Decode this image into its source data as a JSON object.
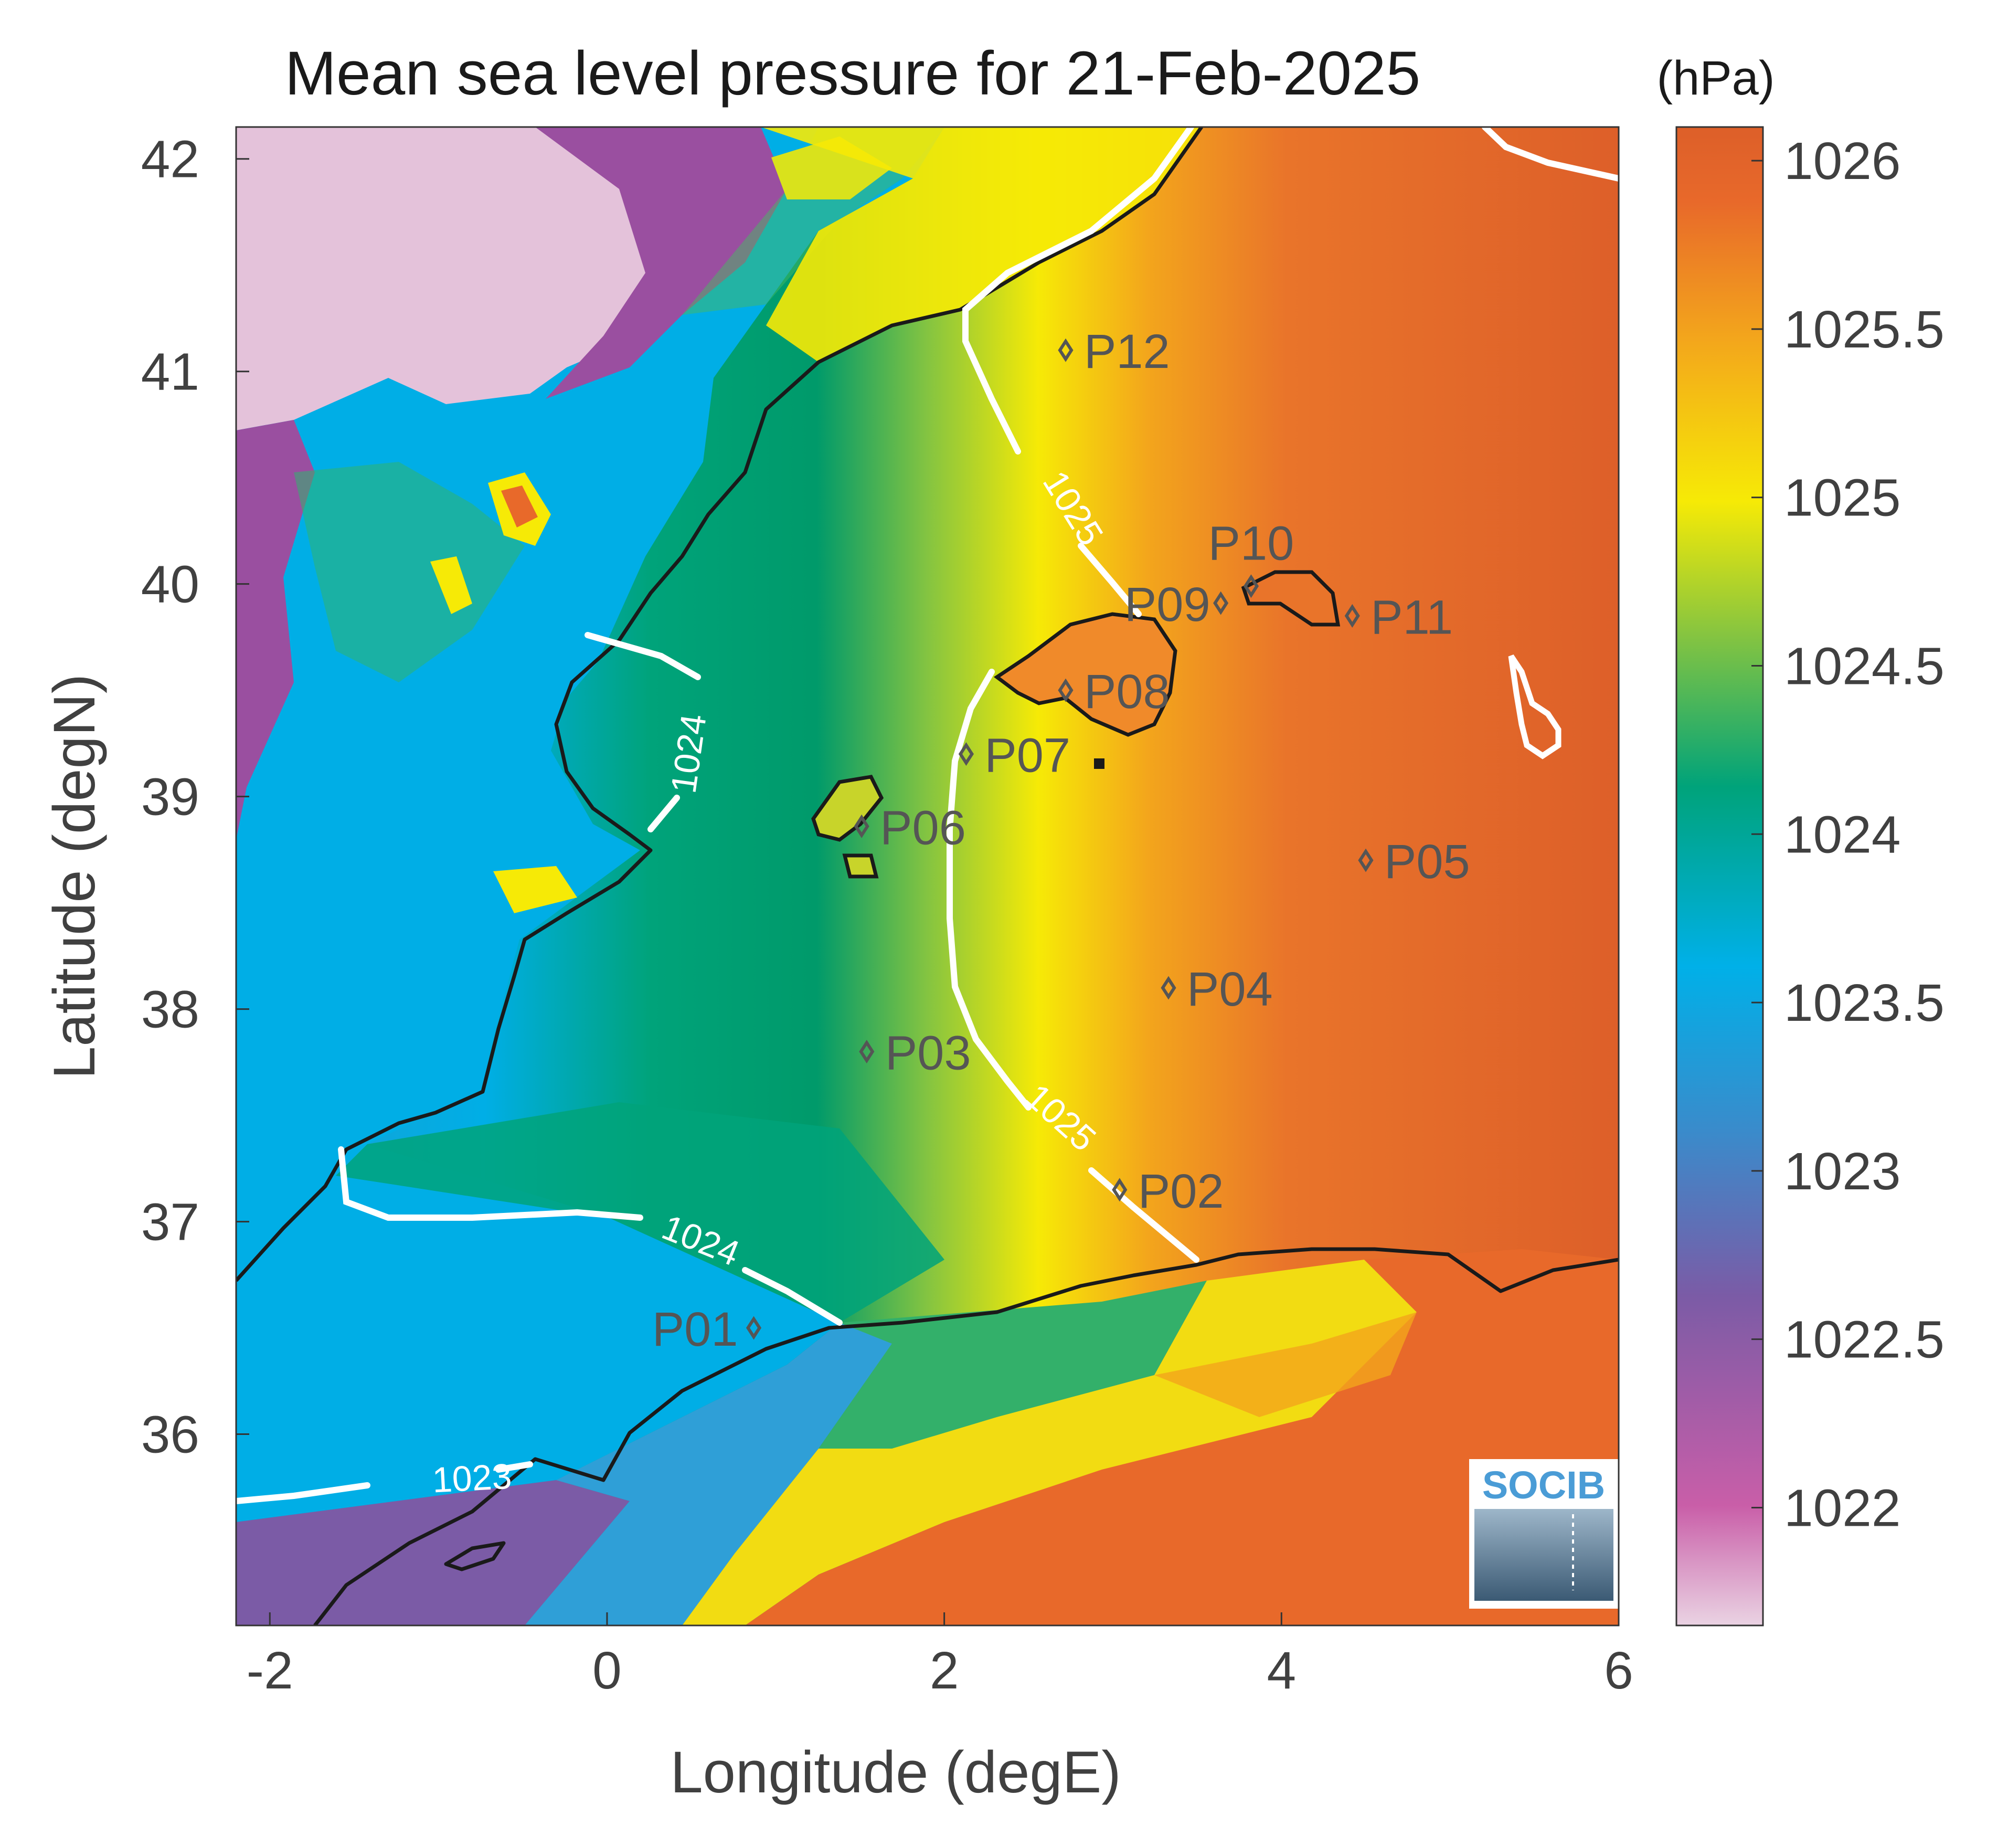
{
  "title": "Mean sea level pressure for 21-Feb-2025",
  "x_axis": {
    "label": "Longitude (degE)",
    "range": [
      -2.2,
      6
    ],
    "ticks": [
      {
        "value": -2,
        "label": "-2"
      },
      {
        "value": 0,
        "label": "0"
      },
      {
        "value": 2,
        "label": "2"
      },
      {
        "value": 4,
        "label": "4"
      },
      {
        "value": 6,
        "label": "6"
      }
    ]
  },
  "y_axis": {
    "label": "Latitude (degN)",
    "range": [
      35.1,
      42.15
    ],
    "ticks": [
      {
        "value": 36,
        "label": "36"
      },
      {
        "value": 37,
        "label": "37"
      },
      {
        "value": 38,
        "label": "38"
      },
      {
        "value": 39,
        "label": "39"
      },
      {
        "value": 40,
        "label": "40"
      },
      {
        "value": 41,
        "label": "41"
      },
      {
        "value": 42,
        "label": "42"
      }
    ]
  },
  "colorbar": {
    "unit": "(hPa)",
    "range": [
      1021.65,
      1026.1
    ],
    "ticks": [
      {
        "value": 1022,
        "label": "1022"
      },
      {
        "value": 1022.5,
        "label": "1022.5"
      },
      {
        "value": 1023,
        "label": "1023"
      },
      {
        "value": 1023.5,
        "label": "1023.5"
      },
      {
        "value": 1024,
        "label": "1024"
      },
      {
        "value": 1024.5,
        "label": "1024.5"
      },
      {
        "value": 1025,
        "label": "1025"
      },
      {
        "value": 1025.5,
        "label": "1025.5"
      },
      {
        "value": 1026,
        "label": "1026"
      }
    ],
    "colors": [
      "#e6c8dc",
      "#c95ea8",
      "#7b5ba6",
      "#3a8bcb",
      "#00b0e8",
      "#00a37a",
      "#84c441",
      "#f6ea06",
      "#f3a51c",
      "#e8692a",
      "#dd5f29"
    ]
  },
  "stations": [
    {
      "id": "P01",
      "lon": 0.87,
      "lat": 36.5
    },
    {
      "id": "P02",
      "lon": 3.04,
      "lat": 37.15
    },
    {
      "id": "P03",
      "lon": 1.54,
      "lat": 37.8
    },
    {
      "id": "P04",
      "lon": 3.33,
      "lat": 38.1
    },
    {
      "id": "P05",
      "lon": 4.5,
      "lat": 38.7
    },
    {
      "id": "P06",
      "lon": 1.51,
      "lat": 38.86
    },
    {
      "id": "P07",
      "lon": 2.13,
      "lat": 39.2
    },
    {
      "id": "P08",
      "lon": 2.72,
      "lat": 39.5
    },
    {
      "id": "P09",
      "lon": 3.64,
      "lat": 39.91
    },
    {
      "id": "P10",
      "lon": 3.82,
      "lat": 39.99
    },
    {
      "id": "P11",
      "lon": 4.42,
      "lat": 39.85
    },
    {
      "id": "P12",
      "lon": 2.72,
      "lat": 41.1
    }
  ],
  "contour_labels": [
    {
      "text": "1025",
      "lon": 2.75,
      "lat": 40.35,
      "angle": 58
    },
    {
      "text": "1024",
      "lon": 0.5,
      "lat": 39.2,
      "angle": -82
    },
    {
      "text": "1025",
      "lon": 2.68,
      "lat": 37.48,
      "angle": 42
    },
    {
      "text": "1024",
      "lon": 0.55,
      "lat": 36.9,
      "angle": 22
    },
    {
      "text": "1023",
      "lon": -0.8,
      "lat": 35.78,
      "angle": -3
    }
  ],
  "logo": "SOCIB"
}
